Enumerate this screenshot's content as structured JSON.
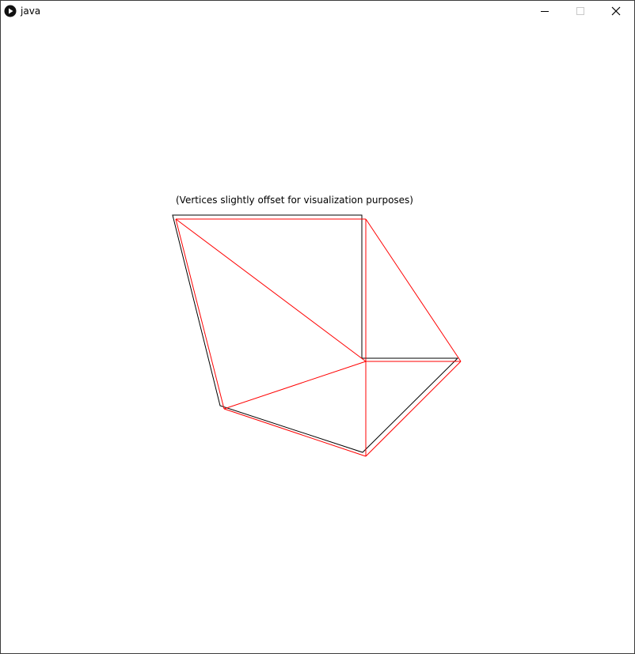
{
  "window": {
    "title": "java",
    "icon": "java-play-icon",
    "controls": {
      "minimize": "minimize-icon",
      "maximize": "maximize-icon",
      "close": "close-icon"
    }
  },
  "canvas": {
    "caption": "(Vertices slightly offset for visualization purposes)",
    "outline_color": "#000000",
    "triangulation_color": "#ff0000",
    "background": "#ffffff"
  }
}
